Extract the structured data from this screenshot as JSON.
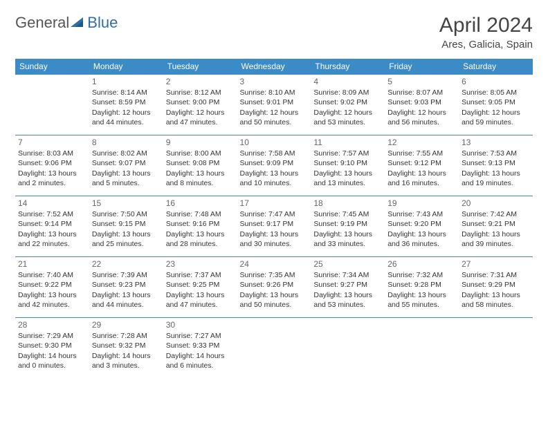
{
  "brand": {
    "part1": "General",
    "part2": "Blue"
  },
  "title": "April 2024",
  "location": "Ares, Galicia, Spain",
  "colors": {
    "header_bg": "#3b8bc6",
    "header_text": "#ffffff",
    "border": "#3b8bc6",
    "text": "#333333",
    "daynum": "#666666",
    "brand_gray": "#555555",
    "brand_blue": "#2f6fa3"
  },
  "day_headers": [
    "Sunday",
    "Monday",
    "Tuesday",
    "Wednesday",
    "Thursday",
    "Friday",
    "Saturday"
  ],
  "weeks": [
    [
      {
        "n": "",
        "sr": "",
        "ss": "",
        "dl": ""
      },
      {
        "n": "1",
        "sr": "Sunrise: 8:14 AM",
        "ss": "Sunset: 8:59 PM",
        "dl": "Daylight: 12 hours and 44 minutes."
      },
      {
        "n": "2",
        "sr": "Sunrise: 8:12 AM",
        "ss": "Sunset: 9:00 PM",
        "dl": "Daylight: 12 hours and 47 minutes."
      },
      {
        "n": "3",
        "sr": "Sunrise: 8:10 AM",
        "ss": "Sunset: 9:01 PM",
        "dl": "Daylight: 12 hours and 50 minutes."
      },
      {
        "n": "4",
        "sr": "Sunrise: 8:09 AM",
        "ss": "Sunset: 9:02 PM",
        "dl": "Daylight: 12 hours and 53 minutes."
      },
      {
        "n": "5",
        "sr": "Sunrise: 8:07 AM",
        "ss": "Sunset: 9:03 PM",
        "dl": "Daylight: 12 hours and 56 minutes."
      },
      {
        "n": "6",
        "sr": "Sunrise: 8:05 AM",
        "ss": "Sunset: 9:05 PM",
        "dl": "Daylight: 12 hours and 59 minutes."
      }
    ],
    [
      {
        "n": "7",
        "sr": "Sunrise: 8:03 AM",
        "ss": "Sunset: 9:06 PM",
        "dl": "Daylight: 13 hours and 2 minutes."
      },
      {
        "n": "8",
        "sr": "Sunrise: 8:02 AM",
        "ss": "Sunset: 9:07 PM",
        "dl": "Daylight: 13 hours and 5 minutes."
      },
      {
        "n": "9",
        "sr": "Sunrise: 8:00 AM",
        "ss": "Sunset: 9:08 PM",
        "dl": "Daylight: 13 hours and 8 minutes."
      },
      {
        "n": "10",
        "sr": "Sunrise: 7:58 AM",
        "ss": "Sunset: 9:09 PM",
        "dl": "Daylight: 13 hours and 10 minutes."
      },
      {
        "n": "11",
        "sr": "Sunrise: 7:57 AM",
        "ss": "Sunset: 9:10 PM",
        "dl": "Daylight: 13 hours and 13 minutes."
      },
      {
        "n": "12",
        "sr": "Sunrise: 7:55 AM",
        "ss": "Sunset: 9:12 PM",
        "dl": "Daylight: 13 hours and 16 minutes."
      },
      {
        "n": "13",
        "sr": "Sunrise: 7:53 AM",
        "ss": "Sunset: 9:13 PM",
        "dl": "Daylight: 13 hours and 19 minutes."
      }
    ],
    [
      {
        "n": "14",
        "sr": "Sunrise: 7:52 AM",
        "ss": "Sunset: 9:14 PM",
        "dl": "Daylight: 13 hours and 22 minutes."
      },
      {
        "n": "15",
        "sr": "Sunrise: 7:50 AM",
        "ss": "Sunset: 9:15 PM",
        "dl": "Daylight: 13 hours and 25 minutes."
      },
      {
        "n": "16",
        "sr": "Sunrise: 7:48 AM",
        "ss": "Sunset: 9:16 PM",
        "dl": "Daylight: 13 hours and 28 minutes."
      },
      {
        "n": "17",
        "sr": "Sunrise: 7:47 AM",
        "ss": "Sunset: 9:17 PM",
        "dl": "Daylight: 13 hours and 30 minutes."
      },
      {
        "n": "18",
        "sr": "Sunrise: 7:45 AM",
        "ss": "Sunset: 9:19 PM",
        "dl": "Daylight: 13 hours and 33 minutes."
      },
      {
        "n": "19",
        "sr": "Sunrise: 7:43 AM",
        "ss": "Sunset: 9:20 PM",
        "dl": "Daylight: 13 hours and 36 minutes."
      },
      {
        "n": "20",
        "sr": "Sunrise: 7:42 AM",
        "ss": "Sunset: 9:21 PM",
        "dl": "Daylight: 13 hours and 39 minutes."
      }
    ],
    [
      {
        "n": "21",
        "sr": "Sunrise: 7:40 AM",
        "ss": "Sunset: 9:22 PM",
        "dl": "Daylight: 13 hours and 42 minutes."
      },
      {
        "n": "22",
        "sr": "Sunrise: 7:39 AM",
        "ss": "Sunset: 9:23 PM",
        "dl": "Daylight: 13 hours and 44 minutes."
      },
      {
        "n": "23",
        "sr": "Sunrise: 7:37 AM",
        "ss": "Sunset: 9:25 PM",
        "dl": "Daylight: 13 hours and 47 minutes."
      },
      {
        "n": "24",
        "sr": "Sunrise: 7:35 AM",
        "ss": "Sunset: 9:26 PM",
        "dl": "Daylight: 13 hours and 50 minutes."
      },
      {
        "n": "25",
        "sr": "Sunrise: 7:34 AM",
        "ss": "Sunset: 9:27 PM",
        "dl": "Daylight: 13 hours and 53 minutes."
      },
      {
        "n": "26",
        "sr": "Sunrise: 7:32 AM",
        "ss": "Sunset: 9:28 PM",
        "dl": "Daylight: 13 hours and 55 minutes."
      },
      {
        "n": "27",
        "sr": "Sunrise: 7:31 AM",
        "ss": "Sunset: 9:29 PM",
        "dl": "Daylight: 13 hours and 58 minutes."
      }
    ],
    [
      {
        "n": "28",
        "sr": "Sunrise: 7:29 AM",
        "ss": "Sunset: 9:30 PM",
        "dl": "Daylight: 14 hours and 0 minutes."
      },
      {
        "n": "29",
        "sr": "Sunrise: 7:28 AM",
        "ss": "Sunset: 9:32 PM",
        "dl": "Daylight: 14 hours and 3 minutes."
      },
      {
        "n": "30",
        "sr": "Sunrise: 7:27 AM",
        "ss": "Sunset: 9:33 PM",
        "dl": "Daylight: 14 hours and 6 minutes."
      },
      {
        "n": "",
        "sr": "",
        "ss": "",
        "dl": ""
      },
      {
        "n": "",
        "sr": "",
        "ss": "",
        "dl": ""
      },
      {
        "n": "",
        "sr": "",
        "ss": "",
        "dl": ""
      },
      {
        "n": "",
        "sr": "",
        "ss": "",
        "dl": ""
      }
    ]
  ]
}
